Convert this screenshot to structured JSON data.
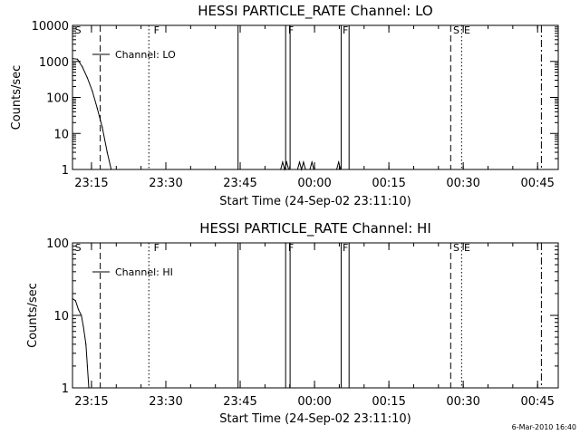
{
  "footer": {
    "timestamp": "6-Mar-2010 16:40"
  },
  "chart_data": [
    {
      "type": "line",
      "title": "HESSI PARTICLE_RATE Channel: LO",
      "xlabel": "Start Time (24-Sep-02 23:11:10)",
      "ylabel": "Counts/sec",
      "yscale": "log",
      "xlim_minutes_from_start": [
        0,
        98
      ],
      "ylim": [
        1,
        10000
      ],
      "x_tick_labels": [
        "23:15",
        "23:30",
        "23:45",
        "00:00",
        "00:15",
        "00:30",
        "00:45"
      ],
      "x_tick_minutes": [
        3.83,
        18.83,
        33.83,
        48.83,
        63.83,
        78.83,
        93.83
      ],
      "y_tick_labels": [
        "1",
        "10",
        "100",
        "1000",
        "10000"
      ],
      "y_tick_values": [
        1,
        10,
        100,
        1000,
        10000
      ],
      "legend": {
        "label": "Channel: LO",
        "placement": "top-left"
      },
      "flags": [
        {
          "text": "S",
          "minute": 0.3
        },
        {
          "text": "F",
          "minute": 16.2
        },
        {
          "text": "F",
          "minute": 43.3
        },
        {
          "text": "F",
          "minute": 54.3
        },
        {
          "text": "S",
          "minute": 76.6
        },
        {
          "text": "E",
          "minute": 78.8
        }
      ],
      "markers": [
        {
          "minute": 5.6,
          "style": "dashed"
        },
        {
          "minute": 15.4,
          "style": "dotted"
        },
        {
          "minute": 33.4,
          "style": "solid"
        },
        {
          "minute": 43.0,
          "style": "solid"
        },
        {
          "minute": 43.9,
          "style": "solid"
        },
        {
          "minute": 54.2,
          "style": "solid"
        },
        {
          "minute": 55.8,
          "style": "solid"
        },
        {
          "minute": 76.3,
          "style": "dashed"
        },
        {
          "minute": 78.5,
          "style": "dotted"
        },
        {
          "minute": 94.6,
          "style": "dashdot"
        }
      ],
      "series": [
        {
          "name": "Channel: LO",
          "points": [
            [
              0,
              1200
            ],
            [
              1,
              1150
            ],
            [
              2,
              700
            ],
            [
              3,
              350
            ],
            [
              4,
              150
            ],
            [
              5,
              50
            ],
            [
              6,
              15
            ],
            [
              7,
              3
            ],
            [
              7.8,
              1
            ],
            [
              42.0,
              1
            ],
            [
              42.4,
              1.6
            ],
            [
              42.8,
              1
            ],
            [
              43.2,
              1.6
            ],
            [
              43.6,
              1
            ],
            [
              45.4,
              1
            ],
            [
              45.8,
              1.6
            ],
            [
              46.2,
              1
            ],
            [
              46.6,
              1.6
            ],
            [
              47.0,
              1
            ],
            [
              47.9,
              1
            ],
            [
              48.3,
              1.6
            ],
            [
              48.7,
              1
            ],
            [
              53.3,
              1
            ],
            [
              53.7,
              1.6
            ],
            [
              54.1,
              1
            ]
          ]
        }
      ]
    },
    {
      "type": "line",
      "title": "HESSI PARTICLE_RATE Channel: HI",
      "xlabel": "Start Time (24-Sep-02 23:11:10)",
      "ylabel": "Counts/sec",
      "yscale": "log",
      "xlim_minutes_from_start": [
        0,
        98
      ],
      "ylim": [
        1,
        100
      ],
      "x_tick_labels": [
        "23:15",
        "23:30",
        "23:45",
        "00:00",
        "00:15",
        "00:30",
        "00:45"
      ],
      "x_tick_minutes": [
        3.83,
        18.83,
        33.83,
        48.83,
        63.83,
        78.83,
        93.83
      ],
      "y_tick_labels": [
        "1",
        "10",
        "100"
      ],
      "y_tick_values": [
        1,
        10,
        100
      ],
      "legend": {
        "label": "Channel: HI",
        "placement": "top-left"
      },
      "flags": [
        {
          "text": "S",
          "minute": 0.3
        },
        {
          "text": "F",
          "minute": 16.2
        },
        {
          "text": "F",
          "minute": 43.3
        },
        {
          "text": "F",
          "minute": 54.3
        },
        {
          "text": "S",
          "minute": 76.6
        },
        {
          "text": "E",
          "minute": 78.8
        }
      ],
      "markers": [
        {
          "minute": 5.6,
          "style": "dashed"
        },
        {
          "minute": 15.4,
          "style": "dotted"
        },
        {
          "minute": 33.4,
          "style": "solid"
        },
        {
          "minute": 43.0,
          "style": "solid"
        },
        {
          "minute": 43.9,
          "style": "solid"
        },
        {
          "minute": 54.2,
          "style": "solid"
        },
        {
          "minute": 55.8,
          "style": "solid"
        },
        {
          "minute": 76.3,
          "style": "dashed"
        },
        {
          "minute": 78.5,
          "style": "dotted"
        },
        {
          "minute": 94.6,
          "style": "dashdot"
        }
      ],
      "series": [
        {
          "name": "Channel: HI",
          "points": [
            [
              0,
              17
            ],
            [
              0.6,
              16
            ],
            [
              1.2,
              12
            ],
            [
              1.8,
              10
            ],
            [
              2.2,
              7
            ],
            [
              2.7,
              4
            ],
            [
              3.0,
              2
            ],
            [
              3.3,
              1
            ]
          ]
        }
      ]
    }
  ]
}
